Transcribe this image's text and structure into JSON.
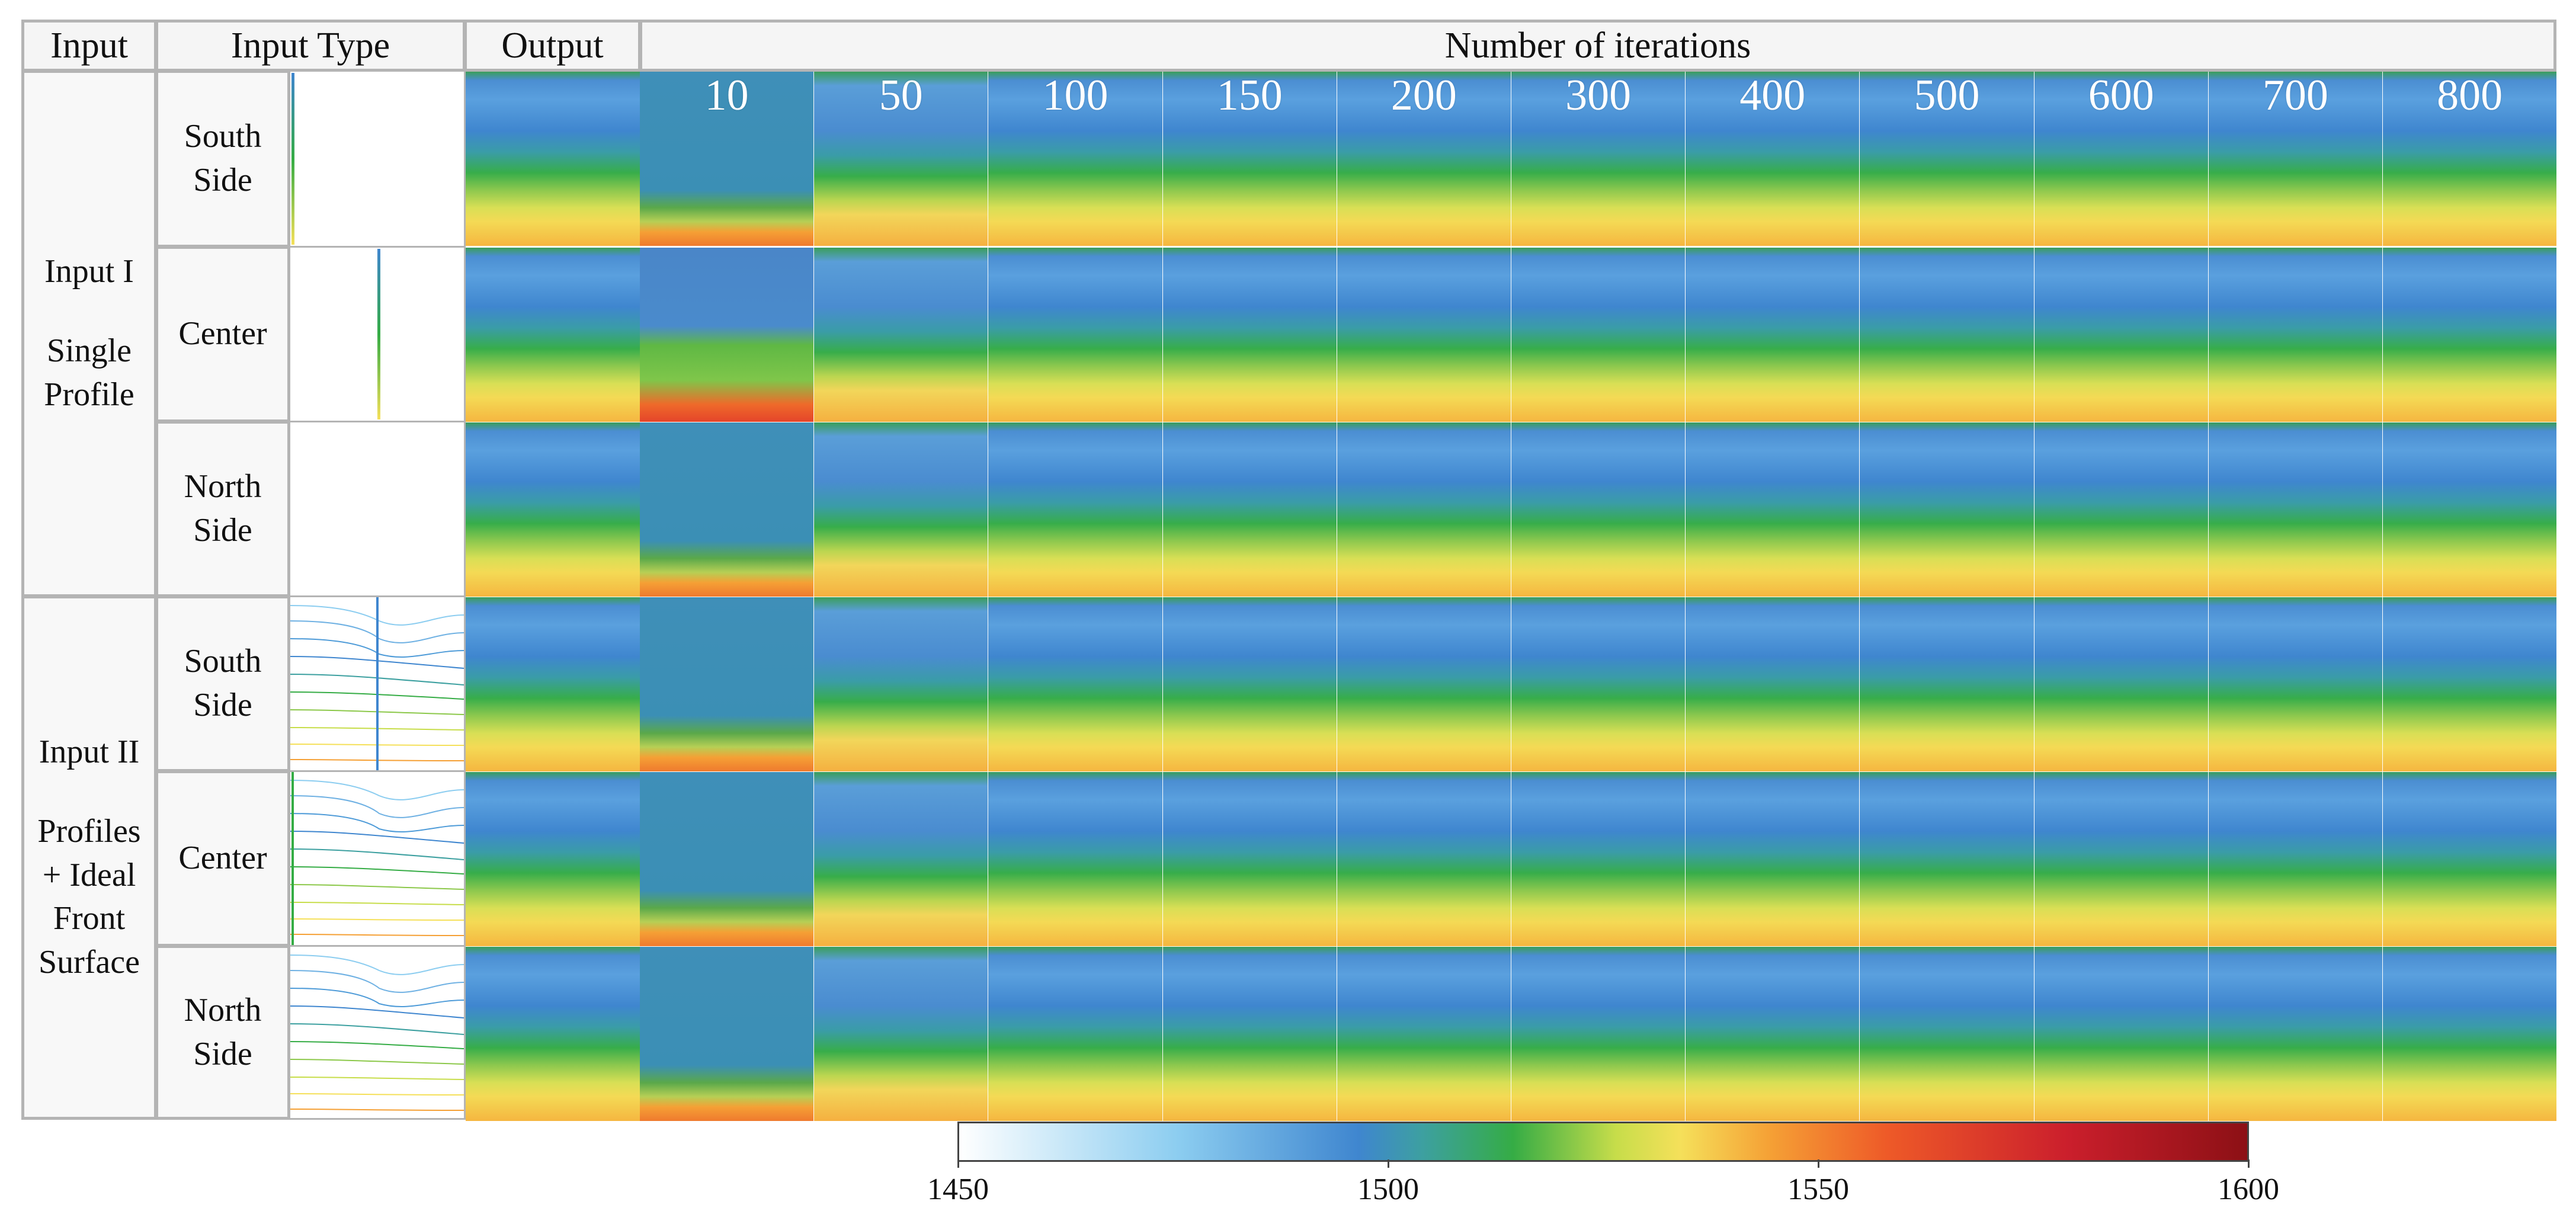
{
  "headers": {
    "input": "Input",
    "input_type": "Input Type",
    "output": "Output",
    "iterations": "Number of iterations"
  },
  "iterations": [
    "10",
    "50",
    "100",
    "150",
    "200",
    "300",
    "400",
    "500",
    "600",
    "700",
    "800"
  ],
  "groups": [
    {
      "title": "Input I",
      "subtitle_lines": [
        "Single",
        "Profile"
      ]
    },
    {
      "title": "Input II",
      "subtitle_lines": [
        "Profiles",
        "+ Ideal",
        "Front",
        "Surface"
      ]
    }
  ],
  "rows": [
    {
      "group": 0,
      "type_lines": [
        "South",
        "Side"
      ],
      "early": "orange"
    },
    {
      "group": 0,
      "type_lines": [
        "Center"
      ],
      "early": "green-red"
    },
    {
      "group": 0,
      "type_lines": [
        "North",
        "Side"
      ],
      "early": "orange"
    },
    {
      "group": 1,
      "type_lines": [
        "South",
        "Side"
      ],
      "early": "orange"
    },
    {
      "group": 1,
      "type_lines": [
        "Center"
      ],
      "early": "orange"
    },
    {
      "group": 1,
      "type_lines": [
        "North",
        "Side"
      ],
      "early": "orange"
    }
  ],
  "colorbar": {
    "min": 1450,
    "max": 1600,
    "ticks": [
      "1450",
      "1500",
      "1550",
      "1600"
    ],
    "stops": [
      "#ffffff",
      "#8ccdf0",
      "#3f86cf",
      "#3da0a0",
      "#35ac45",
      "#c7dd4a",
      "#f5e05a",
      "#f5a035",
      "#ee5a28",
      "#cb1f2c",
      "#8c1015"
    ]
  }
}
